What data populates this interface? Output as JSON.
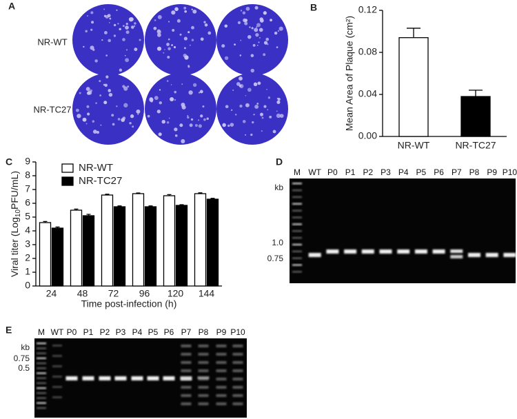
{
  "chart_data": [
    {
      "type": "bar",
      "panel_label": "B",
      "y_label": "Mean Area of Plaque (cm²)",
      "categories": [
        "NR-WT",
        "NR-TC27"
      ],
      "values": [
        0.094,
        0.038
      ],
      "errors": [
        0.009,
        0.006
      ],
      "colors": [
        "#ffffff",
        "#000000"
      ],
      "ylim": [
        0,
        0.12
      ],
      "yticks": [
        {
          "value": 0,
          "label": "0.00"
        },
        {
          "value": 0.04,
          "label": "0.04"
        },
        {
          "value": 0.08,
          "label": "0.08"
        },
        {
          "value": 0.12,
          "label": "0.12"
        }
      ]
    },
    {
      "type": "grouped_bar",
      "panel_label": "C",
      "y_label": "Viral titer (Log",
      "y_label_sub": "10",
      "y_label_end": "PFU/mL)",
      "x_label": "Time post-infection (h)",
      "categories": [
        "24",
        "48",
        "72",
        "96",
        "120",
        "144"
      ],
      "series": [
        {
          "name": "NR-WT",
          "color": "#ffffff",
          "values": [
            4.6,
            5.5,
            6.6,
            6.7,
            6.55,
            6.7
          ],
          "errors": [
            0.08,
            0.08,
            0.06,
            0.05,
            0.08,
            0.06
          ]
        },
        {
          "name": "NR-TC27",
          "color": "#000000",
          "values": [
            4.2,
            5.1,
            5.75,
            5.75,
            5.85,
            6.3
          ],
          "errors": [
            0.08,
            0.1,
            0.06,
            0.06,
            0.05,
            0.06
          ]
        }
      ],
      "ylim": [
        0,
        9
      ],
      "yticks": [
        0,
        1,
        2,
        3,
        4,
        5,
        6,
        7,
        8,
        9
      ],
      "legend": "upper left"
    }
  ],
  "panels": {
    "A": {
      "label": "A",
      "rows": [
        "NR-WT",
        "NR-TC27"
      ]
    },
    "D": {
      "label": "D",
      "lanes": [
        "M",
        "WT",
        "P0",
        "P1",
        "P2",
        "P3",
        "P4",
        "P5",
        "P6",
        "P7",
        "P8",
        "P9",
        "P10"
      ],
      "unit": "kb",
      "markers": [
        "1.0",
        "0.75"
      ]
    },
    "E": {
      "label": "E",
      "lanes": [
        "M",
        "WT",
        "P0",
        "P1",
        "P2",
        "P3",
        "P4",
        "P5",
        "P6",
        "P7",
        "P8",
        "P9",
        "P10"
      ],
      "unit": "kb",
      "markers": [
        "0.75",
        "0.5"
      ]
    }
  }
}
